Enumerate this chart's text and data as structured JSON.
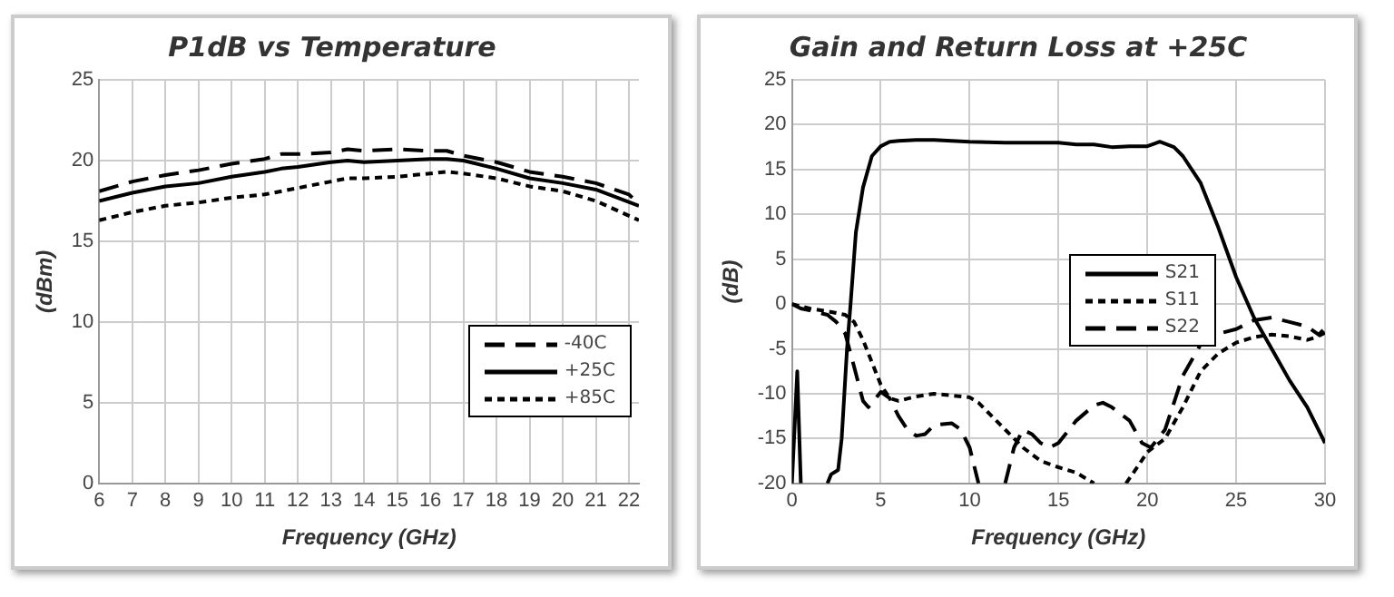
{
  "chart_data": [
    {
      "type": "line",
      "title": "P1dB vs Temperature",
      "xlabel": "Frequency (GHz)",
      "ylabel": "(dBm)",
      "xlim": [
        6,
        22.3
      ],
      "xticks": [
        6,
        7,
        8,
        9,
        10,
        11,
        12,
        13,
        14,
        15,
        16,
        17,
        18,
        19,
        20,
        21,
        22
      ],
      "ylim": [
        0,
        25
      ],
      "yticks": [
        0,
        5,
        10,
        15,
        20,
        25
      ],
      "grid": true,
      "legend": "bottom right",
      "marker": "none",
      "series": [
        {
          "name": "-40C",
          "color": "#000000",
          "line_style": "dashed",
          "x": [
            6,
            7,
            8,
            9,
            10,
            11,
            11.5,
            12,
            13,
            13.5,
            14,
            15,
            16,
            16.5,
            17,
            18,
            19,
            20,
            21,
            22,
            22.3
          ],
          "values": [
            18.1,
            18.7,
            19.1,
            19.4,
            19.8,
            20.1,
            20.4,
            20.4,
            20.5,
            20.7,
            20.6,
            20.7,
            20.6,
            20.6,
            20.3,
            19.9,
            19.3,
            19.0,
            18.6,
            17.9,
            17.3
          ]
        },
        {
          "name": "+25C",
          "color": "#000000",
          "line_style": "solid",
          "x": [
            6,
            7,
            8,
            9,
            10,
            11,
            11.5,
            12,
            13,
            13.5,
            14,
            15,
            16,
            16.5,
            17,
            18,
            19,
            20,
            21,
            22.3
          ],
          "values": [
            17.5,
            18.0,
            18.4,
            18.6,
            19.0,
            19.3,
            19.5,
            19.6,
            19.9,
            20.0,
            19.9,
            20.0,
            20.1,
            20.1,
            20.0,
            19.5,
            18.9,
            18.6,
            18.2,
            17.2
          ]
        },
        {
          "name": "+85C",
          "color": "#000000",
          "line_style": "dotted",
          "x": [
            6,
            7,
            8,
            9,
            10,
            11,
            12,
            13,
            13.5,
            14,
            15,
            16,
            16.5,
            17,
            18,
            19,
            20,
            21,
            22.3
          ],
          "values": [
            16.3,
            16.8,
            17.2,
            17.4,
            17.7,
            17.9,
            18.3,
            18.7,
            18.9,
            18.9,
            19.0,
            19.2,
            19.3,
            19.2,
            18.9,
            18.4,
            18.1,
            17.5,
            16.3
          ]
        }
      ]
    },
    {
      "type": "line",
      "title": "Gain and Return Loss at +25C",
      "xlabel": "Frequency (GHz)",
      "ylabel": "(dB)",
      "xlim": [
        0,
        30
      ],
      "xticks": [
        0,
        5,
        10,
        15,
        20,
        25,
        30
      ],
      "ylim": [
        -20,
        25
      ],
      "yticks": [
        -20,
        -15,
        -10,
        -5,
        0,
        5,
        10,
        15,
        20,
        25
      ],
      "grid": true,
      "legend": "right",
      "marker": "none",
      "series": [
        {
          "name": "S21",
          "color": "#000000",
          "line_style": "solid",
          "x": [
            0,
            0.3,
            0.5,
            1,
            2,
            2.2,
            2.6,
            2.8,
            3.1,
            3.3,
            3.6,
            4,
            4.5,
            5,
            5.5,
            6,
            7,
            8,
            9,
            10,
            12,
            14,
            15,
            16,
            17,
            18,
            19,
            20,
            20.7,
            21.5,
            22,
            23,
            24,
            25,
            26,
            27,
            28,
            29,
            30
          ],
          "values": [
            -20,
            -7.5,
            -20,
            null,
            -20,
            -19,
            -18.5,
            -15,
            -5,
            0,
            8,
            13,
            16.5,
            17.6,
            18.1,
            18.2,
            18.3,
            18.3,
            18.2,
            18.1,
            18.0,
            18.0,
            18.0,
            17.8,
            17.8,
            17.5,
            17.6,
            17.6,
            18.1,
            17.5,
            16.5,
            13.5,
            8.5,
            3,
            -1.5,
            -5,
            -8.5,
            -11.5,
            -15.5
          ]
        },
        {
          "name": "S11",
          "color": "#000000",
          "line_style": "dotted",
          "x": [
            0,
            1,
            2,
            3,
            3.5,
            4,
            4.5,
            5,
            5.5,
            6,
            7,
            8,
            9,
            10,
            10.5,
            11,
            12,
            13,
            14,
            15,
            16,
            17,
            18,
            18.8,
            19.5,
            20,
            21,
            22,
            22.5,
            23,
            24,
            25,
            26,
            27,
            28,
            29,
            29.5,
            30
          ],
          "values": [
            0,
            -0.5,
            -0.8,
            -1.2,
            -2,
            -4,
            -6.5,
            -9,
            -10.5,
            -10.8,
            -10.3,
            -10,
            -10.2,
            -10.4,
            -11,
            -12,
            -14,
            -16,
            -17.5,
            -18.2,
            -18.8,
            -20,
            null,
            -20,
            -18,
            -16.5,
            -15,
            -11.5,
            -9.5,
            -7.5,
            -5.5,
            -4.3,
            -3.7,
            -3.4,
            -3.6,
            -4,
            -3.7,
            -2.7
          ]
        },
        {
          "name": "S22",
          "color": "#000000",
          "line_style": "dashed",
          "x": [
            0,
            0.5,
            1,
            2,
            2.5,
            3,
            3.5,
            4,
            4.3,
            5,
            5.5,
            6,
            6.5,
            7,
            7.5,
            8,
            9,
            9.5,
            10,
            10.5,
            11,
            12,
            12.5,
            13,
            13.5,
            14,
            14.5,
            15,
            16,
            17,
            17.5,
            18,
            19,
            19.7,
            20.2,
            21,
            22,
            23,
            24,
            25,
            26,
            27,
            28,
            29,
            29.7,
            30
          ],
          "values": [
            0,
            -0.5,
            -0.7,
            -1.2,
            -2,
            -3.3,
            -7,
            -10.8,
            -11.5,
            -9.8,
            -10.5,
            -12.5,
            -14,
            -14.7,
            -14.5,
            -13.5,
            -13.3,
            -14,
            -16,
            -20,
            null,
            -20,
            -16,
            -14,
            -14.5,
            -15.5,
            -16,
            -15.5,
            -13,
            -11.3,
            -11,
            -11.5,
            -13,
            -15.5,
            -16,
            -14,
            -8,
            -4.5,
            -3.3,
            -2.8,
            -1.8,
            -1.5,
            -2,
            -2.5,
            -3.5,
            -3.2
          ]
        }
      ]
    }
  ]
}
